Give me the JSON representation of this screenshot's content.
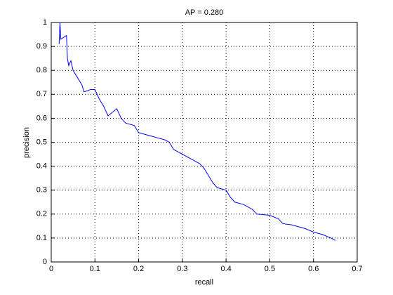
{
  "chart_data": {
    "type": "line",
    "title": "AP = 0.280",
    "x_label": "recall",
    "y_label": "precision",
    "x": [
      0.018,
      0.02,
      0.022,
      0.03,
      0.035,
      0.037,
      0.04,
      0.045,
      0.05,
      0.06,
      0.07,
      0.075,
      0.09,
      0.1,
      0.11,
      0.12,
      0.13,
      0.15,
      0.16,
      0.17,
      0.19,
      0.2,
      0.22,
      0.24,
      0.26,
      0.27,
      0.28,
      0.3,
      0.32,
      0.34,
      0.35,
      0.36,
      0.37,
      0.38,
      0.4,
      0.41,
      0.42,
      0.44,
      0.46,
      0.47,
      0.5,
      0.52,
      0.53,
      0.55,
      0.58,
      0.6,
      0.62,
      0.64,
      0.65
    ],
    "values": [
      0.91,
      1.0,
      0.93,
      0.94,
      0.945,
      0.85,
      0.82,
      0.84,
      0.8,
      0.77,
      0.74,
      0.71,
      0.72,
      0.72,
      0.68,
      0.65,
      0.61,
      0.64,
      0.6,
      0.58,
      0.57,
      0.54,
      0.53,
      0.52,
      0.51,
      0.5,
      0.47,
      0.45,
      0.43,
      0.41,
      0.39,
      0.36,
      0.33,
      0.31,
      0.3,
      0.27,
      0.25,
      0.24,
      0.22,
      0.2,
      0.195,
      0.18,
      0.16,
      0.155,
      0.14,
      0.125,
      0.115,
      0.1,
      0.09
    ],
    "color": "#0000ff",
    "grid": true,
    "xlim": [
      0,
      0.7
    ],
    "xticks": [
      0,
      0.1,
      0.2,
      0.3,
      0.4,
      0.5,
      0.6,
      0.7
    ],
    "ylim": [
      0,
      1
    ],
    "yticks": [
      0,
      0.1,
      0.2,
      0.3,
      0.4,
      0.5,
      0.6,
      0.7,
      0.8,
      0.9,
      1
    ]
  }
}
